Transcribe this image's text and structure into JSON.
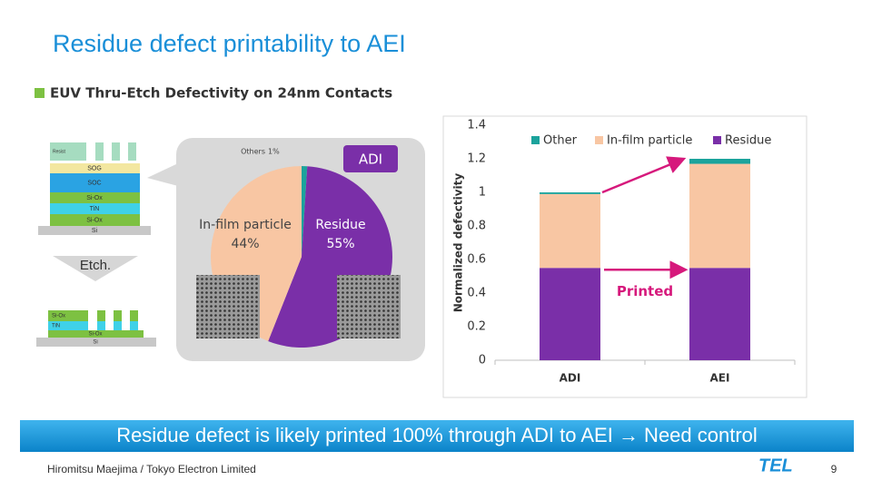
{
  "slide": {
    "title": "Residue defect printability to AEI",
    "subtitle": "EUV Thru-Etch Defectivity on 24nm Contacts",
    "banner": "Residue defect is likely printed 100% through ADI to AEI → Need control",
    "footer": "Hiromitsu Maejima / Tokyo Electron Limited",
    "logo": "TEL",
    "page_number": "9"
  },
  "diagram": {
    "before": [
      "Resist",
      "SOG",
      "SOC",
      "Si-Ox",
      "TiN",
      "Si-Ox",
      "Si"
    ],
    "step": "Etch.",
    "after": [
      "Si-Ox",
      "TiN",
      "Si-Ox",
      "Si"
    ]
  },
  "chart_data": [
    {
      "type": "pie",
      "tag": "ADI",
      "categories": [
        "Others",
        "Residue",
        "In-film particle"
      ],
      "values": [
        1,
        55,
        44
      ],
      "value_labels": [
        "1%",
        "55%",
        "44%"
      ],
      "colors": [
        "#1ba39c",
        "#7a2fa8",
        "#f8c6a3"
      ]
    },
    {
      "type": "bar",
      "stacked": true,
      "categories": [
        "ADI",
        "AEI"
      ],
      "series": [
        {
          "name": "Other",
          "color": "#1ba39c",
          "values": [
            0.01,
            0.03
          ]
        },
        {
          "name": "In-film particle",
          "color": "#f8c6a3",
          "values": [
            0.44,
            0.62
          ]
        },
        {
          "name": "Residue",
          "color": "#7a2fa8",
          "values": [
            0.55,
            0.55
          ]
        }
      ],
      "y_label": "Normalized defectivity",
      "ylim": [
        0,
        1.4
      ],
      "yticks": [
        0,
        0.2,
        0.4,
        0.6,
        0.8,
        1,
        1.2,
        1.4
      ],
      "annotation": "Printed",
      "legend": "top"
    }
  ]
}
